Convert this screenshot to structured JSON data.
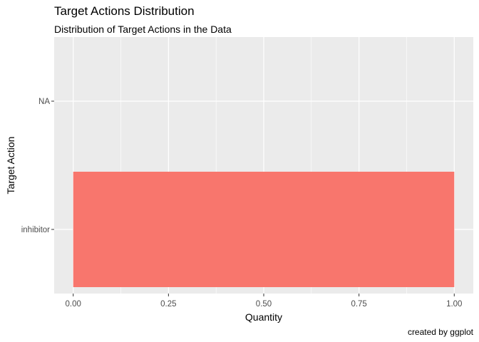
{
  "chart_data": {
    "type": "bar",
    "orientation": "horizontal",
    "title": "Target Actions Distribution",
    "subtitle": "Distribution of Target Actions in the Data",
    "caption": "created by ggplot",
    "xlabel": "Quantity",
    "ylabel": "Target Action",
    "categories": [
      "inhibitor",
      "NA"
    ],
    "values": [
      1.0,
      0.0
    ],
    "xlim": [
      -0.05,
      1.05
    ],
    "xticks": [
      0.0,
      0.25,
      0.5,
      0.75,
      1.0
    ],
    "xtick_labels": [
      "0.00",
      "0.25",
      "0.50",
      "0.75",
      "1.00"
    ],
    "grid": true,
    "bar_color": "#F8766D",
    "panel_color": "#EBEBEB",
    "grid_color": "#FFFFFF"
  }
}
